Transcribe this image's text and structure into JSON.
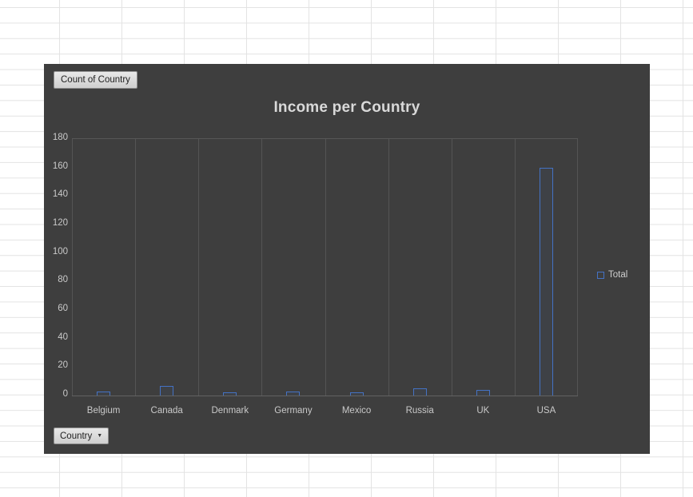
{
  "chart": {
    "count_button_label": "Count of Country",
    "country_button_label": "Country",
    "legend_label": "Total",
    "background_color": "#3e3e3e",
    "bar_border_color": "#4472c4",
    "text_color": "#c9c9c9"
  },
  "chart_data": {
    "type": "bar",
    "title": "Income per Country",
    "categories": [
      "Belgium",
      "Canada",
      "Denmark",
      "Germany",
      "Mexico",
      "Russia",
      "UK",
      "USA"
    ],
    "series": [
      {
        "name": "Total",
        "values": [
          3,
          7,
          2,
          3,
          2,
          5,
          4,
          160
        ]
      }
    ],
    "xlabel": "",
    "ylabel": "",
    "ylim": [
      0,
      180
    ],
    "ytick": 20,
    "grid": "vertical",
    "legend_position": "right"
  }
}
